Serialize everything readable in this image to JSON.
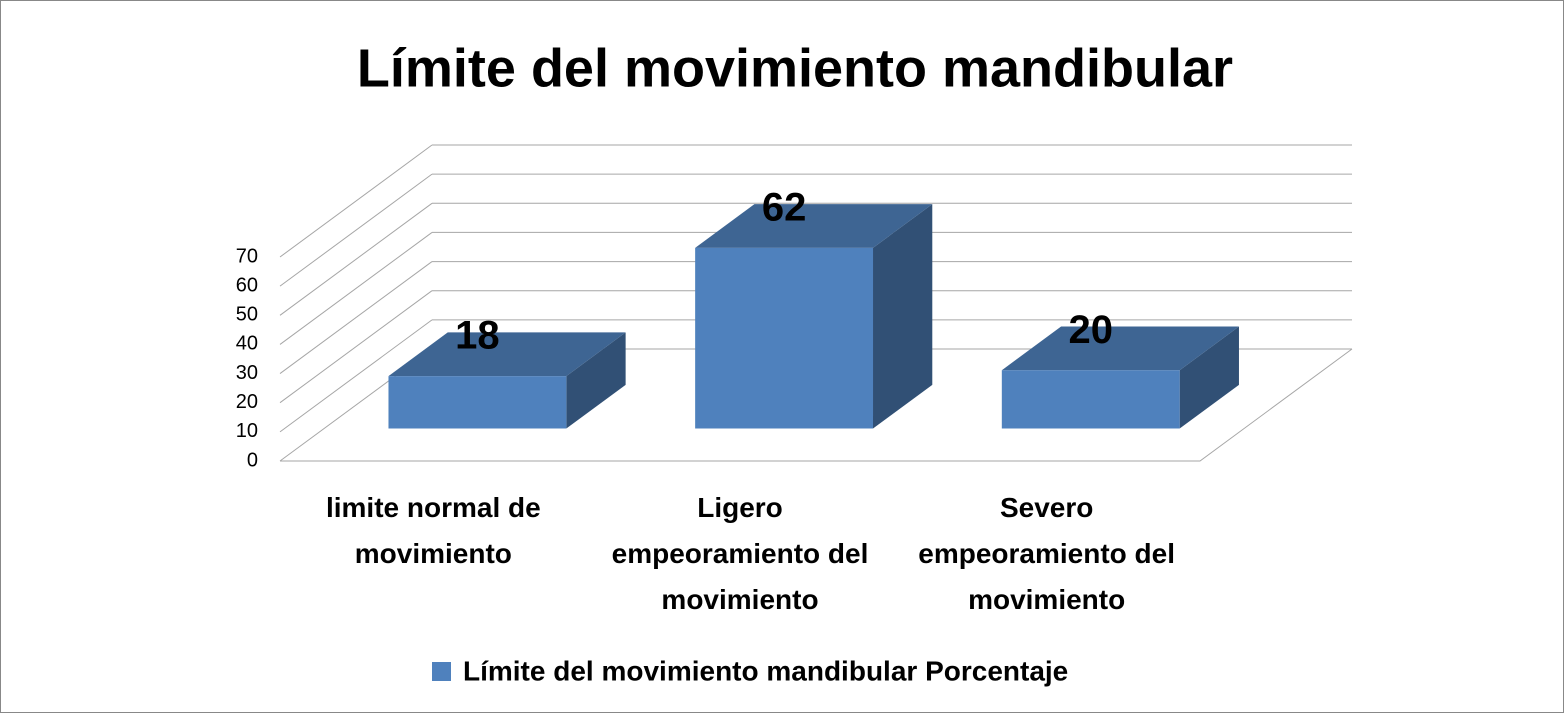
{
  "chart_data": {
    "type": "bar3d",
    "title": "Límite del movimiento mandibular",
    "categories": [
      "limite normal de movimiento",
      "Ligero empeoramiento del movimiento",
      "Severo empeoramiento del movimiento"
    ],
    "series": [
      {
        "name": "Límite del movimiento mandibular Porcentaje",
        "color": "#4f81bd",
        "values": [
          18,
          62,
          20
        ]
      }
    ],
    "ylim": [
      0,
      70
    ],
    "yticks": [
      0,
      10,
      20,
      30,
      40,
      50,
      60,
      70
    ],
    "grid": true,
    "legend": "bottom"
  }
}
